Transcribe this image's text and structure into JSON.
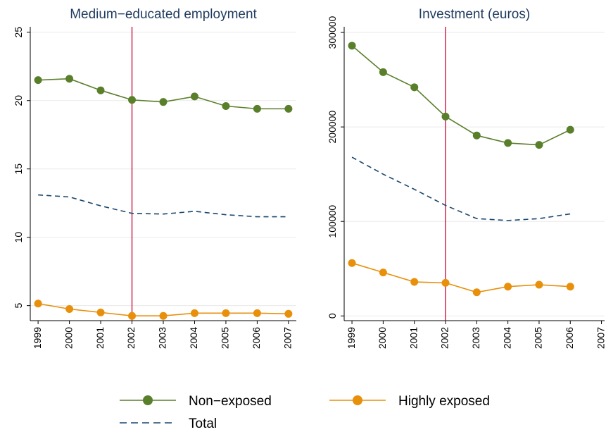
{
  "chart_data": [
    {
      "type": "line",
      "title": "Medium−educated employment",
      "x": [
        1999,
        2000,
        2001,
        2002,
        2003,
        2004,
        2005,
        2006,
        2007
      ],
      "series": [
        {
          "name": "Non−exposed",
          "color": "#5a7f2b",
          "values": [
            21.5,
            21.6,
            20.75,
            20.05,
            19.9,
            20.3,
            19.6,
            19.4,
            19.4
          ]
        },
        {
          "name": "Highly exposed",
          "color": "#e8900c",
          "values": [
            5.15,
            4.75,
            4.5,
            4.25,
            4.25,
            4.45,
            4.45,
            4.45,
            4.4
          ]
        },
        {
          "name": "Total",
          "color": "#1a476f",
          "dashed": true,
          "values": [
            13.1,
            12.95,
            12.3,
            11.75,
            11.7,
            11.9,
            11.65,
            11.5,
            11.5
          ]
        }
      ],
      "xlim": [
        1998.75,
        2007.25
      ],
      "xticks": [
        1999,
        2000,
        2001,
        2002,
        2003,
        2004,
        2005,
        2006,
        2007
      ],
      "ylim": [
        3.9,
        25.4
      ],
      "yticks": [
        5,
        10,
        15,
        20,
        25
      ],
      "grid": true,
      "reference_x": 2002,
      "reference_color": "#c10534"
    },
    {
      "type": "line",
      "title": "Investment (euros)",
      "x": [
        1999,
        2000,
        2001,
        2002,
        2003,
        2004,
        2005,
        2006
      ],
      "series": [
        {
          "color": "#5a7f2b",
          "values": [
            286000,
            258000,
            242000,
            211000,
            191000,
            183000,
            181000,
            197000
          ]
        },
        {
          "color": "#e8900c",
          "values": [
            56000,
            46000,
            36000,
            35000,
            25000,
            31000,
            33000,
            31000
          ]
        },
        {
          "color": "#1a476f",
          "dashed": true,
          "values": [
            168000,
            150000,
            134000,
            117000,
            103000,
            101000,
            103000,
            108000
          ]
        }
      ],
      "xlim": [
        1998.75,
        2007.1
      ],
      "xticks": [
        1999,
        2000,
        2001,
        2002,
        2003,
        2004,
        2005,
        2006,
        2007
      ],
      "ylim": [
        -5000,
        306000
      ],
      "yticks": [
        0,
        100000,
        200000,
        300000
      ],
      "grid": true,
      "reference_x": 2002,
      "reference_color": "#c10534"
    }
  ]
}
